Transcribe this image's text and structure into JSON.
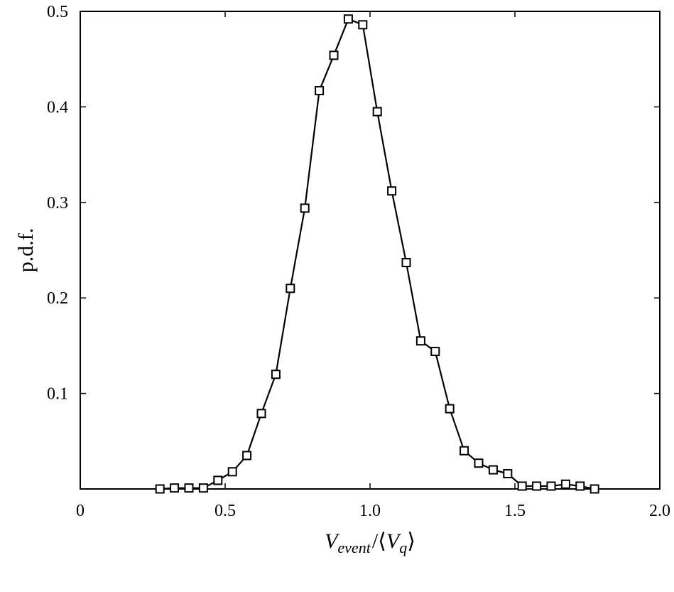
{
  "chart_data": {
    "type": "line",
    "title": "",
    "xlabel": {
      "v": "V",
      "event": "event",
      "slash": "/⟨",
      "vq": "V",
      "q": "q",
      "close": "⟩"
    },
    "ylabel": "p.d.f.",
    "xlim": [
      0,
      2.0
    ],
    "ylim": [
      0,
      0.5
    ],
    "xticks": [
      {
        "value": 0,
        "label": "0"
      },
      {
        "value": 0.5,
        "label": "0.5"
      },
      {
        "value": 1.0,
        "label": "1.0"
      },
      {
        "value": 1.5,
        "label": "1.5"
      },
      {
        "value": 2.0,
        "label": "2.0"
      }
    ],
    "yticks": [
      {
        "value": 0.1,
        "label": "0.1"
      },
      {
        "value": 0.2,
        "label": "0.2"
      },
      {
        "value": 0.3,
        "label": "0.3"
      },
      {
        "value": 0.4,
        "label": "0.4"
      },
      {
        "value": 0.5,
        "label": "0.5"
      }
    ],
    "marker": "square",
    "line_color": "#000000",
    "grid": false,
    "series": [
      {
        "x": [
          0.275,
          0.325,
          0.375,
          0.425,
          0.475,
          0.525,
          0.575,
          0.625,
          0.675,
          0.725,
          0.775,
          0.825,
          0.875,
          0.925,
          0.975,
          1.025,
          1.075,
          1.125,
          1.175,
          1.225,
          1.275,
          1.325,
          1.375,
          1.425,
          1.475,
          1.525,
          1.575,
          1.625,
          1.675,
          1.725,
          1.775
        ],
        "y": [
          0.0,
          0.001,
          0.001,
          0.001,
          0.009,
          0.018,
          0.035,
          0.079,
          0.12,
          0.21,
          0.294,
          0.417,
          0.454,
          0.492,
          0.486,
          0.395,
          0.312,
          0.237,
          0.155,
          0.144,
          0.084,
          0.04,
          0.027,
          0.02,
          0.016,
          0.003,
          0.003,
          0.003,
          0.005,
          0.003,
          0.0
        ]
      }
    ]
  }
}
